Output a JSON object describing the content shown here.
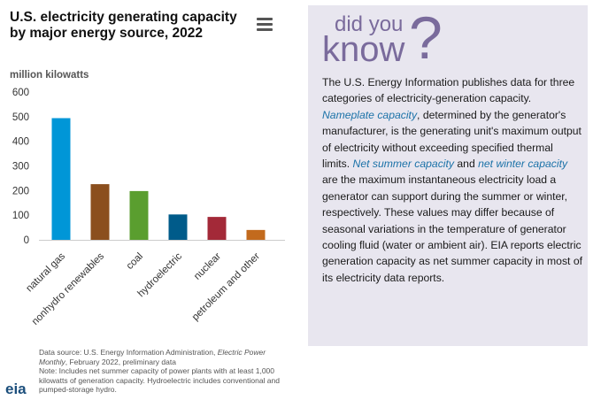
{
  "header": {
    "title": "U.S. electricity generating capacity by major energy source, 2022",
    "menu_icon": "hamburger-menu-icon"
  },
  "chart_data": {
    "type": "bar",
    "title": "U.S. electricity generating capacity by major energy source, 2022",
    "ylabel": "million kilowatts",
    "xlabel": "",
    "ylim": [
      0,
      600
    ],
    "yticks": [
      0,
      100,
      200,
      300,
      400,
      500,
      600
    ],
    "grid": false,
    "categories": [
      "natural gas",
      "nonhydro renewables",
      "coal",
      "hydroelectric",
      "nuclear",
      "petroleum and other"
    ],
    "values": [
      494,
      226,
      198,
      103,
      93,
      40
    ],
    "colors": [
      "#0096d7",
      "#8b4f1e",
      "#5a9e2f",
      "#005b8a",
      "#a32938",
      "#c26a1d"
    ]
  },
  "source": {
    "line1": "Data source: U.S. Energy Information Administration, ",
    "line1_italic": "Electric Power Monthly",
    "line1_end": ", February 2022, preliminary data",
    "note": "Note: Includes net summer capacity of power plants with at least 1,000 kilowatts of generation capacity. Hydroelectric includes conventional and pumped-storage hydro."
  },
  "logo": "eia",
  "did_you_know": {
    "heading_a": "did you",
    "heading_b": "know",
    "heading_q": "?",
    "t1": "The U.S. Energy Information publishes data for three categories of electricity-generation capacity. ",
    "em1": "Nameplate capacity",
    "t2": ", determined by the generator's manufacturer, is the generating unit's maximum output of electricity without exceeding specified thermal limits. ",
    "em2": "Net summer capacity",
    "t3": " and ",
    "em3": "net winter capacity",
    "t4": " are the maximum instantaneous electricity load a generator can support during the summer or winter, respectively. These values may differ because of seasonal variations in the temperature of generator cooling fluid (water or ambient air). EIA reports electric generation capacity as net summer capacity in most of its electricity data reports."
  }
}
